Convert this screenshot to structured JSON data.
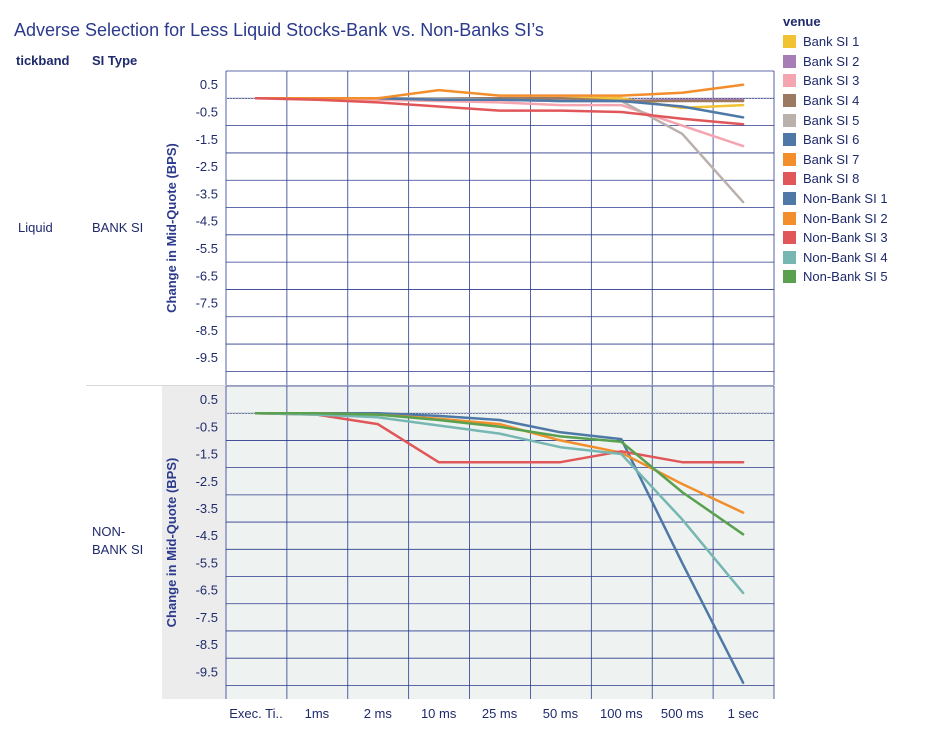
{
  "title": "Adverse Selection for Less Liquid Stocks-Bank vs. Non-Banks SI’s",
  "headers": {
    "tickband": "tickband",
    "si_type": "SI Type"
  },
  "row_labels": {
    "tickband": "Liquid",
    "bank": "BANK SI",
    "nonbank": "NON-BANK SI"
  },
  "chart_data": [
    {
      "type": "line",
      "panel": "BANK SI",
      "ylabel": "Change in Mid-Quote (BPS)",
      "categories": [
        "Exec. Ti..",
        "1ms",
        "2 ms",
        "10 ms",
        "25 ms",
        "50 ms",
        "100 ms",
        "500 ms",
        "1 sec"
      ],
      "ylim": [
        -10.5,
        1.0
      ],
      "yticks": [
        0.5,
        -0.5,
        -1.5,
        -2.5,
        -3.5,
        -4.5,
        -5.5,
        -6.5,
        -7.5,
        -8.5,
        -9.5
      ],
      "grid": true,
      "series": [
        {
          "name": "Bank SI 1",
          "color": "#f1c232",
          "values": [
            0,
            0,
            0,
            0,
            0,
            0,
            0,
            -0.35,
            -0.25
          ]
        },
        {
          "name": "Bank SI 2",
          "color": "#a77db6",
          "values": [
            0,
            0,
            0,
            -0.05,
            -0.05,
            -0.1,
            -0.1,
            -0.05,
            -0.05
          ]
        },
        {
          "name": "Bank SI 3",
          "color": "#f4a5b0",
          "values": [
            0,
            0,
            -0.05,
            -0.1,
            -0.15,
            -0.25,
            -0.25,
            -1.0,
            -1.75
          ]
        },
        {
          "name": "Bank SI 4",
          "color": "#9c7a62",
          "values": [
            0,
            0,
            0,
            0,
            0,
            0,
            -0.1,
            -0.1,
            -0.1
          ]
        },
        {
          "name": "Bank SI 5",
          "color": "#bab0ac",
          "values": [
            0,
            0,
            0,
            0,
            -0.05,
            -0.1,
            -0.1,
            -1.3,
            -3.8
          ]
        },
        {
          "name": "Bank SI 6",
          "color": "#4e79a7",
          "values": [
            0,
            0,
            0,
            -0.05,
            -0.05,
            -0.1,
            -0.1,
            -0.3,
            -0.7
          ]
        },
        {
          "name": "Bank SI 7",
          "color": "#f28e2b",
          "values": [
            0,
            0,
            0,
            0.3,
            0.1,
            0.1,
            0.1,
            0.2,
            0.5
          ]
        },
        {
          "name": "Bank SI 8",
          "color": "#e15759",
          "values": [
            0,
            -0.05,
            -0.15,
            -0.3,
            -0.45,
            -0.45,
            -0.5,
            -0.75,
            -0.95
          ]
        }
      ]
    },
    {
      "type": "line",
      "panel": "NON-BANK SI",
      "ylabel": "Change in Mid-Quote (BPS)",
      "categories": [
        "Exec. Ti..",
        "1ms",
        "2 ms",
        "10 ms",
        "25 ms",
        "50 ms",
        "100 ms",
        "500 ms",
        "1 sec"
      ],
      "ylim": [
        -10.5,
        1.0
      ],
      "yticks": [
        0.5,
        -0.5,
        -1.5,
        -2.5,
        -3.5,
        -4.5,
        -5.5,
        -6.5,
        -7.5,
        -8.5,
        -9.5
      ],
      "grid": true,
      "series": [
        {
          "name": "Non-Bank SI 1",
          "color": "#4e79a7",
          "values": [
            0,
            0,
            0,
            -0.1,
            -0.25,
            -0.7,
            -0.95,
            -5.5,
            -9.9
          ]
        },
        {
          "name": "Non-Bank SI 2",
          "color": "#f28e2b",
          "values": [
            0,
            0,
            -0.05,
            -0.2,
            -0.4,
            -1.0,
            -1.45,
            -2.6,
            -3.65
          ]
        },
        {
          "name": "Non-Bank SI 3",
          "color": "#e15759",
          "values": [
            0,
            -0.05,
            -0.4,
            -1.8,
            -1.8,
            -1.8,
            -1.4,
            -1.8,
            -1.8
          ]
        },
        {
          "name": "Non-Bank SI 4",
          "color": "#76b7b2",
          "values": [
            0,
            -0.05,
            -0.15,
            -0.45,
            -0.75,
            -1.25,
            -1.5,
            -3.9,
            -6.6
          ]
        },
        {
          "name": "Non-Bank SI 5",
          "color": "#59a14f",
          "values": [
            0,
            0,
            -0.05,
            -0.25,
            -0.5,
            -0.85,
            -1.05,
            -2.9,
            -4.45
          ]
        }
      ]
    }
  ],
  "legend": {
    "title": "venue",
    "items": [
      {
        "label": "Bank SI 1",
        "color": "#f1c232"
      },
      {
        "label": "Bank SI 2",
        "color": "#a77db6"
      },
      {
        "label": "Bank SI 3",
        "color": "#f4a5b0"
      },
      {
        "label": "Bank SI 4",
        "color": "#9c7a62"
      },
      {
        "label": "Bank SI 5",
        "color": "#bab0ac"
      },
      {
        "label": "Bank SI 6",
        "color": "#4e79a7"
      },
      {
        "label": "Bank SI 7",
        "color": "#f28e2b"
      },
      {
        "label": "Bank SI 8",
        "color": "#e15759"
      },
      {
        "label": "Non-Bank SI 1",
        "color": "#4e79a7"
      },
      {
        "label": "Non-Bank SI 2",
        "color": "#f28e2b"
      },
      {
        "label": "Non-Bank SI 3",
        "color": "#e15759"
      },
      {
        "label": "Non-Bank SI 4",
        "color": "#76b7b2"
      },
      {
        "label": "Non-Bank SI 5",
        "color": "#59a14f"
      }
    ]
  }
}
